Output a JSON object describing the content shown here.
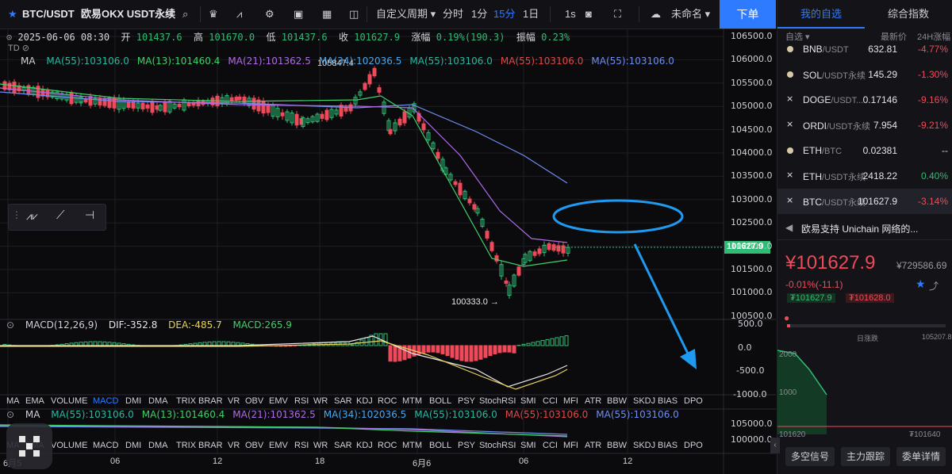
{
  "toolbar": {
    "pair": "BTC/USDT",
    "exchange": "欧易OKX USDT永续",
    "period_label": "自定义周期",
    "intervals": [
      "分时",
      "1分",
      "15分",
      "1日"
    ],
    "active_interval": "15分",
    "interval_1s": "1s",
    "layout_name": "未命名",
    "order_button": "下单"
  },
  "chart": {
    "ohlc": {
      "date": "2025-06-06 08:30",
      "open_label": "开",
      "open": "101437.6",
      "high_label": "高",
      "high": "101670.0",
      "low_label": "低",
      "low": "101437.6",
      "close_label": "收",
      "close": "101627.9",
      "change_label": "涨幅",
      "change": "0.19%(190.3)",
      "amplitude_label": "振幅",
      "amplitude": "0.23%"
    },
    "td_label": "TD",
    "ma_main": {
      "label": "MA",
      "items": [
        {
          "text": "MA(55):103106.0",
          "color": "#29b8a0"
        },
        {
          "text": "MA(13):101460.4",
          "color": "#3fd169"
        },
        {
          "text": "MA(21):101362.5",
          "color": "#b06be8"
        },
        {
          "text": "MA(34):102036.5",
          "color": "#4aa8f0"
        },
        {
          "text": "MA(55):103106.0",
          "color": "#29b8a0"
        },
        {
          "text": "MA(55):103106.0",
          "color": "#e24848"
        },
        {
          "text": "MA(55):103106.0",
          "color": "#6f8ff0"
        }
      ]
    },
    "price_axis": [
      "106500.0",
      "106000.0",
      "105500.0",
      "105000.0",
      "104500.0",
      "104000.0",
      "103500.0",
      "103000.0",
      "102500.0",
      "102000.0",
      "101500.0",
      "101000.0",
      "100500.0"
    ],
    "current_price_tag": "101627.9",
    "high_annot": "105847.4",
    "low_annot": "100333.0 →",
    "macd": {
      "title": "MACD(12,26,9)",
      "dif": "DIF:-352.8",
      "dea": "DEA:-485.7",
      "macd": "MACD:265.9",
      "axis": [
        "500.0",
        "0.0",
        "-500.0",
        "-1000.0"
      ]
    },
    "indicator_tabs": [
      "MA",
      "EMA",
      "VOLUME",
      "MACD",
      "DMI",
      "DMA",
      "TRIX",
      "BRAR",
      "VR",
      "OBV",
      "EMV",
      "RSI",
      "WR",
      "SAR",
      "KDJ",
      "ROC",
      "MTM",
      "BOLL",
      "PSY",
      "StochRSI",
      "SMI",
      "CCI",
      "MFI",
      "ATR",
      "BBW",
      "SKDJ",
      "BIAS",
      "DPO"
    ],
    "indicator_tabs_2": [
      "MA",
      "EMA",
      "VOLUME",
      "MACD",
      "DMI",
      "DMA",
      "TRIX",
      "BRAR",
      "VR",
      "OBV",
      "EMV",
      "RSI",
      "WR",
      "SAR",
      "KDJ",
      "ROC",
      "MTM",
      "BOLL",
      "PSY",
      "StochRSI",
      "SMI",
      "CCI",
      "MFI",
      "ATR",
      "BBW",
      "SKDJ",
      "BIAS",
      "DPO"
    ],
    "active_tab": "MACD",
    "ma_sub": {
      "label": "MA",
      "items": [
        {
          "text": "MA(55):103106.0",
          "color": "#29b8a0"
        },
        {
          "text": "MA(13):101460.4",
          "color": "#3fd169"
        },
        {
          "text": "MA(21):101362.5",
          "color": "#b06be8"
        },
        {
          "text": "MA(34):102036.5",
          "color": "#4aa8f0"
        },
        {
          "text": "MA(55):103106.0",
          "color": "#29b8a0"
        },
        {
          "text": "MA(55):103106.0",
          "color": "#e24848"
        },
        {
          "text": "MA(55):103106.0",
          "color": "#6f8ff0"
        }
      ],
      "axis": [
        "105000.0",
        "100000.0"
      ]
    },
    "time_axis": [
      "6月5",
      "06",
      "12",
      "18",
      "6月6",
      "06",
      "12"
    ]
  },
  "right_panel": {
    "tabs": [
      "我的自选",
      "综合指数"
    ],
    "header": {
      "col1": "自选",
      "col2": "最新价",
      "col3": "24H涨幅"
    },
    "watchlist": [
      {
        "base": "BNB",
        "quote": "/USDT",
        "price": "632.81",
        "change": "-4.77%",
        "icon": "coin"
      },
      {
        "base": "SOL",
        "quote": "/USDT永续",
        "price": "145.29",
        "change": "-1.30%",
        "icon": "coin"
      },
      {
        "base": "DOGE",
        "quote": "/USDT...",
        "price": "0.17146",
        "change": "-9.16%",
        "icon": "x"
      },
      {
        "base": "ORDI",
        "quote": "/USDT永续",
        "price": "7.954",
        "change": "-9.21%",
        "icon": "x"
      },
      {
        "base": "ETH",
        "quote": "/BTC",
        "price": "0.02381",
        "change": "--",
        "icon": "coin"
      },
      {
        "base": "ETH",
        "quote": "/USDT永续",
        "price": "2418.22",
        "change": "0.40%",
        "icon": "x"
      },
      {
        "base": "BTC",
        "quote": "/USDT永续",
        "price": "101627.9",
        "change": "-3.14%",
        "icon": "x"
      }
    ],
    "news": "欧易支持 Unichain 网络的...",
    "big_price": "¥101627.9",
    "cny_price": "¥729586.69",
    "pct_change": "-0.01%(-11.1)",
    "bid": "₮101627.9",
    "ask": "₮101628.0",
    "range_label": "日涨跌",
    "range_high": "105207.8",
    "depth_axis": [
      "2000",
      "1000"
    ],
    "depth_low": "101620",
    "depth_high": "₮101640",
    "buttons": [
      "多空信号",
      "主力跟踪",
      "委单详情"
    ]
  }
}
